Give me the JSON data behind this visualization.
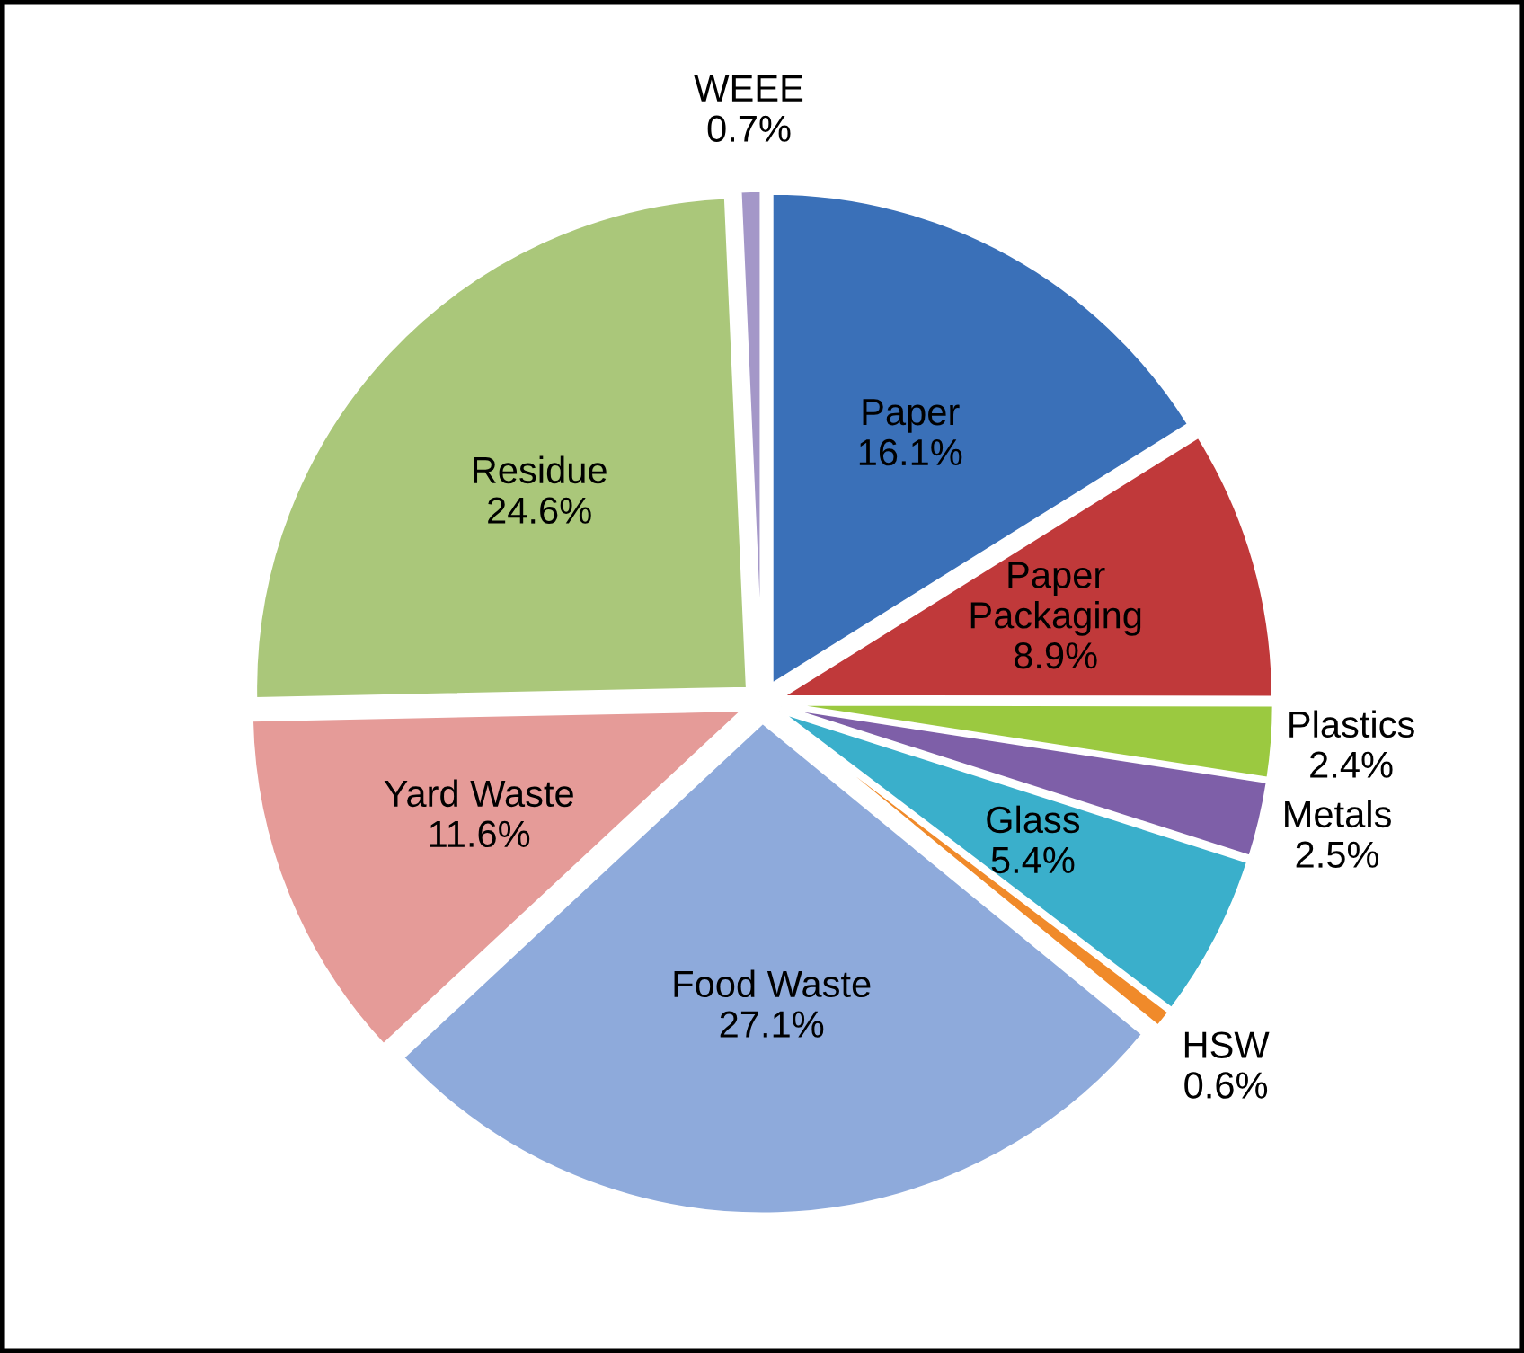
{
  "chart_data": {
    "type": "pie",
    "categories": [
      "Paper",
      "Paper\nPackaging",
      "Plastics",
      "Metals",
      "Glass",
      "HSW",
      "Food Waste",
      "Yard Waste",
      "Residue",
      "WEEE"
    ],
    "values": [
      16.1,
      8.9,
      2.4,
      2.5,
      5.4,
      0.6,
      27.1,
      11.6,
      24.6,
      0.7
    ],
    "value_labels": [
      "16.1%",
      "8.9%",
      "2.4%",
      "2.5%",
      "5.4%",
      "0.6%",
      "27.1%",
      "11.6%",
      "24.6%",
      "0.7%"
    ],
    "colors": [
      "#3a70b8",
      "#c0393a",
      "#9bc940",
      "#7e5fa8",
      "#3aafcb",
      "#f08a2a",
      "#8eaadb",
      "#e59b98",
      "#aac77a",
      "#a497c8"
    ],
    "legend": false
  }
}
